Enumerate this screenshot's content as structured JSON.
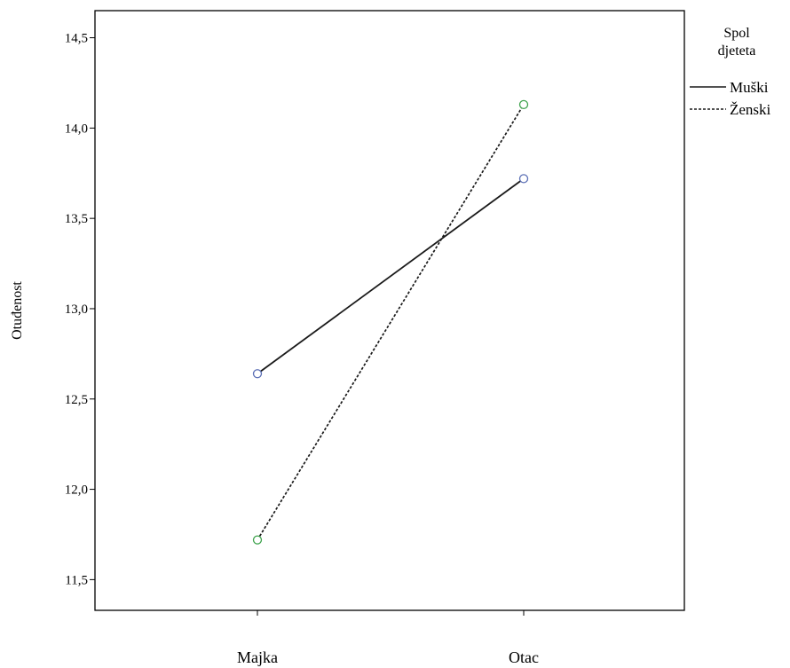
{
  "chart_data": {
    "type": "line",
    "title": "",
    "xlabel": "",
    "ylabel": "Otuđenost",
    "categories": [
      "Majka",
      "Otac"
    ],
    "ylim": [
      11.33,
      14.65
    ],
    "yticks": [
      11.5,
      12.0,
      12.5,
      13.0,
      13.5,
      14.0,
      14.5
    ],
    "ytick_labels": [
      "11,5",
      "12,0",
      "12,5",
      "13,0",
      "13,5",
      "14,0",
      "14,5"
    ],
    "grid": false,
    "legend": {
      "title_lines": [
        "Spol",
        "djeteta"
      ],
      "placement": "right-top"
    },
    "series": [
      {
        "name": "Muški",
        "values": [
          12.64,
          13.72
        ],
        "line_style": "solid",
        "marker_color": "#5b6fb5"
      },
      {
        "name": "Ženski",
        "values": [
          11.72,
          14.13
        ],
        "line_style": "dashed",
        "marker_color": "#3fa34d"
      }
    ]
  }
}
